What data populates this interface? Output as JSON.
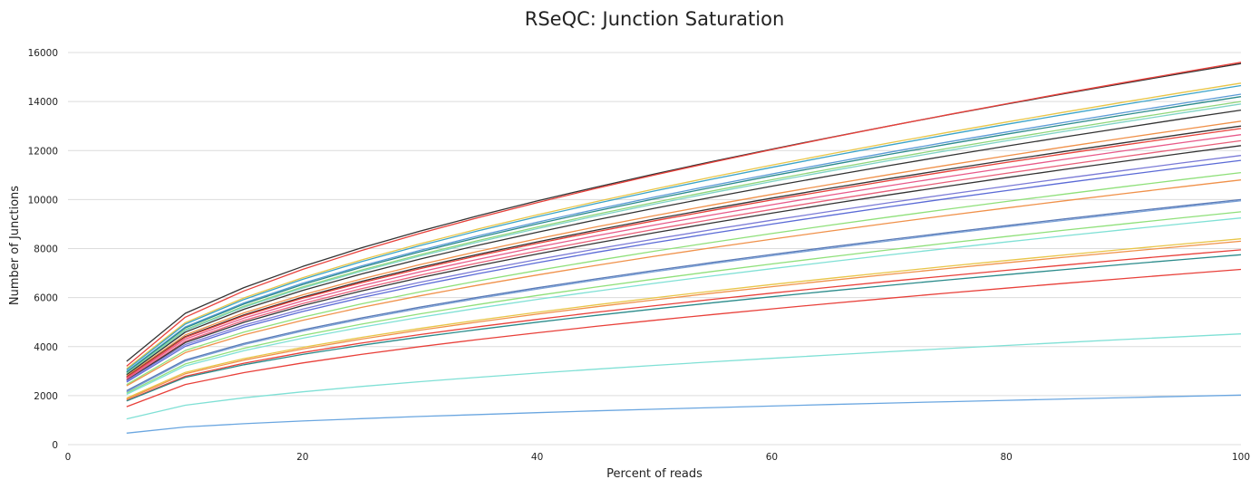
{
  "chart_data": {
    "type": "line",
    "title": "RSeQC: Junction Saturation",
    "xlabel": "Percent of reads",
    "ylabel": "Number of Junctions",
    "xlim": [
      0,
      100
    ],
    "ylim": [
      0,
      16000
    ],
    "xticks": [
      "0",
      "20",
      "40",
      "60",
      "80",
      "100"
    ],
    "yticks": [
      "0",
      "2000",
      "4000",
      "6000",
      "8000",
      "10000",
      "12000",
      "14000",
      "16000"
    ],
    "grid": true,
    "legend": "none",
    "x": [
      5,
      10,
      15,
      20,
      25,
      30,
      35,
      40,
      45,
      50,
      55,
      60,
      65,
      70,
      75,
      80,
      85,
      90,
      95,
      100
    ],
    "series": [
      {
        "color": "#333333",
        "start": 3400,
        "end": 15550
      },
      {
        "color": "#e8403a",
        "start": 3200,
        "end": 15600
      },
      {
        "color": "#e8c547",
        "start": 3100,
        "end": 14750
      },
      {
        "color": "#3aa3c8",
        "start": 3050,
        "end": 14650
      },
      {
        "color": "#5a9ad6",
        "start": 2980,
        "end": 14300
      },
      {
        "color": "#2a8a8a",
        "start": 2950,
        "end": 14200
      },
      {
        "color": "#8fd67a",
        "start": 2900,
        "end": 14000
      },
      {
        "color": "#7fd3c5",
        "start": 2880,
        "end": 13900
      },
      {
        "color": "#333333",
        "start": 2850,
        "end": 13650
      },
      {
        "color": "#f0914a",
        "start": 2800,
        "end": 13200
      },
      {
        "color": "#333333",
        "start": 2760,
        "end": 13000
      },
      {
        "color": "#e8403a",
        "start": 2740,
        "end": 12900
      },
      {
        "color": "#e85a8a",
        "start": 2700,
        "end": 12650
      },
      {
        "color": "#e8607a",
        "start": 2650,
        "end": 12400
      },
      {
        "color": "#333333",
        "start": 2620,
        "end": 12200
      },
      {
        "color": "#7a7ad6",
        "start": 2600,
        "end": 11800
      },
      {
        "color": "#5a6ad6",
        "start": 2550,
        "end": 11600
      },
      {
        "color": "#8fe07a",
        "start": 2450,
        "end": 11100
      },
      {
        "color": "#f0914a",
        "start": 2400,
        "end": 10800
      },
      {
        "color": "#5a7ab6",
        "start": 2200,
        "end": 10000
      },
      {
        "color": "#7aa0d6",
        "start": 2150,
        "end": 9950
      },
      {
        "color": "#8fe07a",
        "start": 2100,
        "end": 9500
      },
      {
        "color": "#7fe0d5",
        "start": 2050,
        "end": 9250
      },
      {
        "color": "#e8c547",
        "start": 1900,
        "end": 8400
      },
      {
        "color": "#f0914a",
        "start": 1850,
        "end": 8300
      },
      {
        "color": "#e8403a",
        "start": 1800,
        "end": 7950
      },
      {
        "color": "#2a8a8a",
        "start": 1780,
        "end": 7750
      },
      {
        "color": "#e8403a",
        "start": 1550,
        "end": 7150
      },
      {
        "color": "#7fe0d5",
        "start": 1050,
        "end": 4520
      },
      {
        "color": "#6aa6e0",
        "start": 470,
        "end": 2020
      }
    ]
  }
}
